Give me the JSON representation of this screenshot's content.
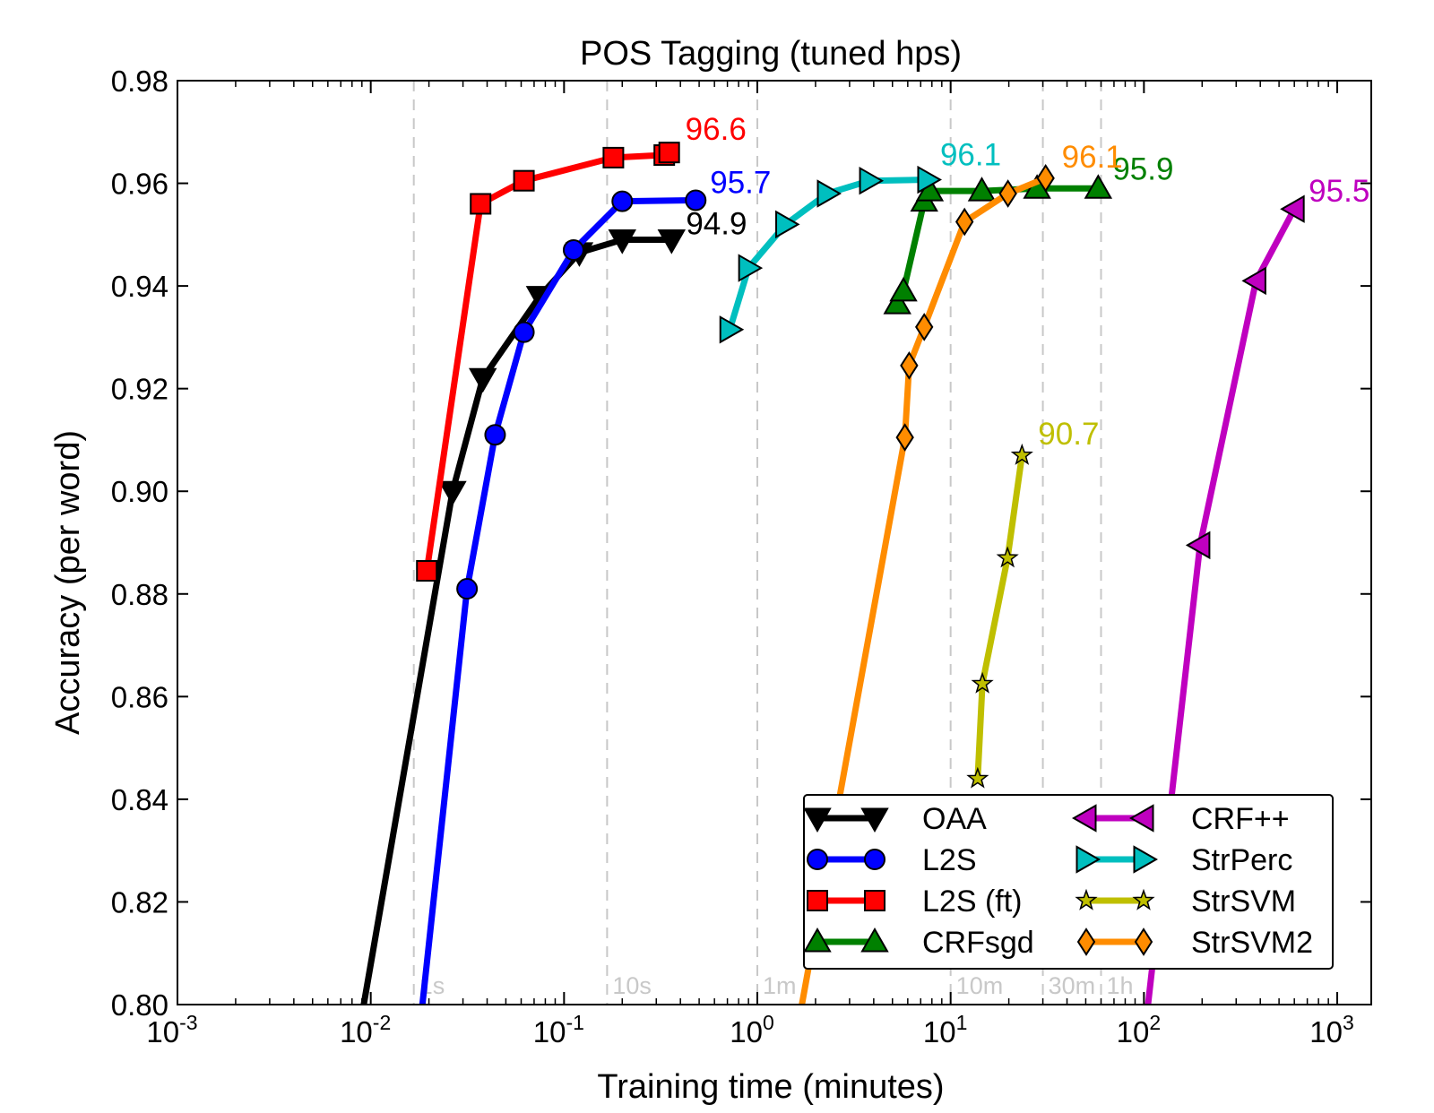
{
  "chart_data": {
    "type": "line",
    "title": "POS Tagging (tuned hps)",
    "xlabel": "Training time (minutes)",
    "ylabel": "Accuracy (per word)",
    "xscale": "log",
    "xlim": [
      0.001,
      1500
    ],
    "ylim": [
      0.8,
      0.98
    ],
    "x_ticks": [
      {
        "value": 0.001,
        "base": "10",
        "exp": "-3"
      },
      {
        "value": 0.01,
        "base": "10",
        "exp": "-2"
      },
      {
        "value": 0.1,
        "base": "10",
        "exp": "-1"
      },
      {
        "value": 1,
        "base": "10",
        "exp": "0"
      },
      {
        "value": 10,
        "base": "10",
        "exp": "1"
      },
      {
        "value": 100,
        "base": "10",
        "exp": "2"
      },
      {
        "value": 1000,
        "base": "10",
        "exp": "3"
      }
    ],
    "y_ticks": [
      {
        "value": 0.8,
        "label": "0.80"
      },
      {
        "value": 0.82,
        "label": "0.82"
      },
      {
        "value": 0.84,
        "label": "0.84"
      },
      {
        "value": 0.86,
        "label": "0.86"
      },
      {
        "value": 0.88,
        "label": "0.88"
      },
      {
        "value": 0.9,
        "label": "0.90"
      },
      {
        "value": 0.92,
        "label": "0.92"
      },
      {
        "value": 0.94,
        "label": "0.94"
      },
      {
        "value": 0.96,
        "label": "0.96"
      },
      {
        "value": 0.98,
        "label": "0.98"
      }
    ],
    "reference_lines": [
      {
        "x": 0.0167,
        "label": "1s"
      },
      {
        "x": 0.167,
        "label": "10s"
      },
      {
        "x": 1,
        "label": "1m"
      },
      {
        "x": 10,
        "label": "10m"
      },
      {
        "x": 30,
        "label": "30m"
      },
      {
        "x": 60,
        "label": "1h"
      }
    ],
    "legend_position": "lower-right",
    "series": [
      {
        "name": "OAA",
        "color": "#000000",
        "marker": "triangle-down",
        "x": [
          0.0092,
          0.0265,
          0.038,
          0.075,
          0.12,
          0.2,
          0.36
        ],
        "y": [
          0.8,
          0.9,
          0.922,
          0.938,
          0.9465,
          0.949,
          0.949
        ],
        "marker_from": 1,
        "end_label": "94.9",
        "end_label_color": "#000000"
      },
      {
        "name": "L2S",
        "color": "#0000ff",
        "marker": "circle",
        "x": [
          0.0185,
          0.0315,
          0.044,
          0.062,
          0.112,
          0.2,
          0.48
        ],
        "y": [
          0.8,
          0.881,
          0.911,
          0.931,
          0.947,
          0.9565,
          0.9567
        ],
        "marker_from": 1,
        "end_label": "95.7",
        "end_label_color": "#0000ff"
      },
      {
        "name": "L2S (ft)",
        "color": "#ff0000",
        "marker": "square",
        "x": [
          0.0195,
          0.037,
          0.062,
          0.18,
          0.33,
          0.35
        ],
        "y": [
          0.8845,
          0.956,
          0.9605,
          0.965,
          0.9655,
          0.966
        ],
        "marker_from": 0,
        "end_label": "96.6",
        "end_label_color": "#ff0000"
      },
      {
        "name": "CRFsgd",
        "color": "#008000",
        "marker": "triangle-up",
        "x": [
          5.3,
          5.7,
          7.3,
          7.8,
          14.5,
          28.0,
          58.0
        ],
        "y": [
          0.9365,
          0.939,
          0.9565,
          0.9585,
          0.9585,
          0.959,
          0.959
        ],
        "marker_from": 0,
        "end_label": "95.9",
        "end_label_color": "#008000"
      },
      {
        "name": "CRF++",
        "color": "#bf00bf",
        "marker": "triangle-left",
        "x": [
          105,
          195,
          380,
          600
        ],
        "y": [
          0.8,
          0.8895,
          0.941,
          0.955
        ],
        "marker_from": 1,
        "end_label": "95.5",
        "end_label_color": "#bf00bf"
      },
      {
        "name": "StrPerc",
        "color": "#00bfbf",
        "marker": "triangle-right",
        "x": [
          0.72,
          0.9,
          1.4,
          2.3,
          3.8,
          7.6
        ],
        "y": [
          0.9315,
          0.9435,
          0.952,
          0.958,
          0.9605,
          0.9607
        ],
        "marker_from": 0,
        "end_label": "96.1",
        "end_label_color": "#00bfbf"
      },
      {
        "name": "StrSVM",
        "color": "#bfbf00",
        "marker": "star",
        "x": [
          13.8,
          14.6,
          19.7,
          23.4
        ],
        "y": [
          0.844,
          0.8625,
          0.887,
          0.907
        ],
        "marker_from": 0,
        "end_label": "90.7",
        "end_label_color": "#bfbf00"
      },
      {
        "name": "StrSVM2",
        "color": "#ff8c00",
        "marker": "diamond",
        "x": [
          1.7,
          5.8,
          6.1,
          7.3,
          11.8,
          19.8,
          31.0
        ],
        "y": [
          0.8,
          0.9105,
          0.9245,
          0.932,
          0.9525,
          0.958,
          0.961
        ],
        "marker_from": 1,
        "end_label": "96.1",
        "end_label_color": "#ff8c00"
      }
    ]
  }
}
